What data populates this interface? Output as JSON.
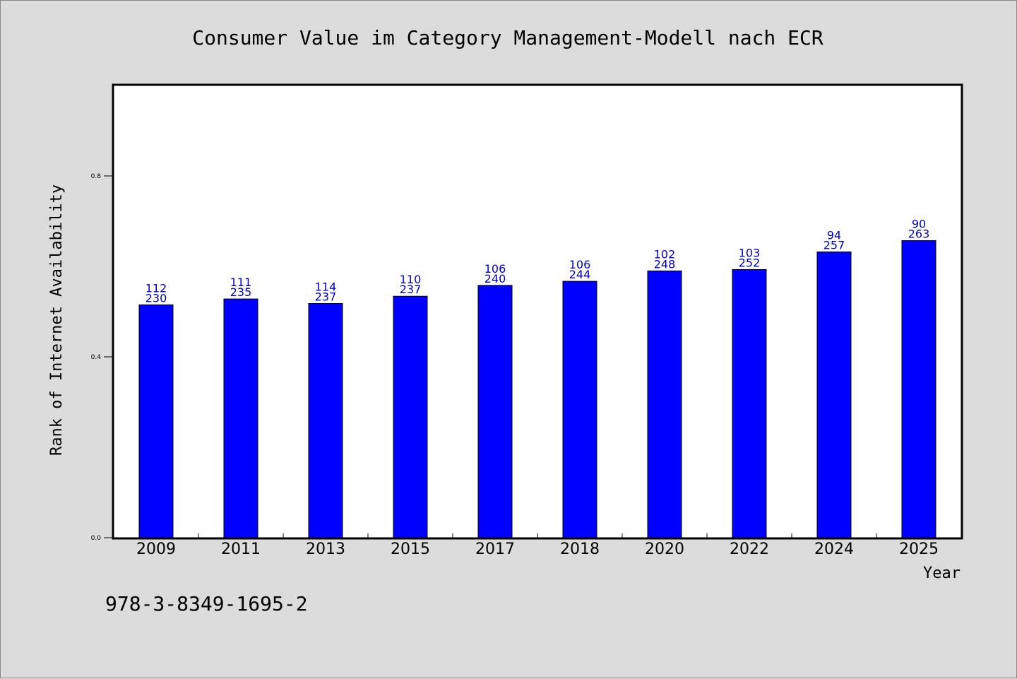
{
  "chart_data": {
    "type": "bar",
    "title": "Consumer Value im Category Management-Modell nach ECR",
    "xlabel": "Year",
    "ylabel": "Rank of Internet Availability",
    "categories": [
      "2009",
      "2011",
      "2013",
      "2015",
      "2017",
      "2018",
      "2020",
      "2022",
      "2024",
      "2025"
    ],
    "series": [
      {
        "values": [
          0.515,
          0.528,
          0.518,
          0.534,
          0.558,
          0.567,
          0.59,
          0.593,
          0.632,
          0.657
        ]
      }
    ],
    "annotations_top": [
      "112",
      "111",
      "114",
      "110",
      "106",
      "106",
      "102",
      "103",
      "94",
      "90"
    ],
    "annotations_bottom": [
      "230",
      "235",
      "237",
      "237",
      "240",
      "244",
      "248",
      "252",
      "257",
      "263"
    ],
    "yticks": [
      0.0,
      0.4,
      0.8
    ],
    "ytick_labels": [
      "0.0",
      "0.4",
      "0.8"
    ],
    "ylim": [
      0,
      1.0
    ],
    "grid": false,
    "bar_color": "#0000ff",
    "label_color": "#0000cc",
    "footnote": "978-3-8349-1695-2"
  }
}
